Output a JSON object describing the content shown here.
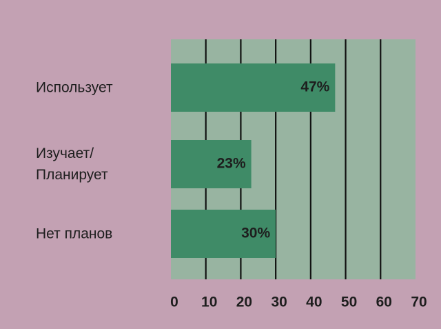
{
  "chart_data": {
    "type": "barh",
    "categories": [
      "Использует",
      "Изучает/\nПланирует",
      "Нет планов"
    ],
    "values": [
      47,
      23,
      30
    ],
    "value_labels": [
      "47%",
      "23%",
      "30%"
    ],
    "color": "#3f8b67",
    "plot_background": "#98b4a1",
    "background": "#c3a1b3",
    "xlim": [
      0,
      70
    ],
    "xticks": [
      0,
      10,
      20,
      30,
      40,
      50,
      60,
      70
    ],
    "grid": true
  }
}
